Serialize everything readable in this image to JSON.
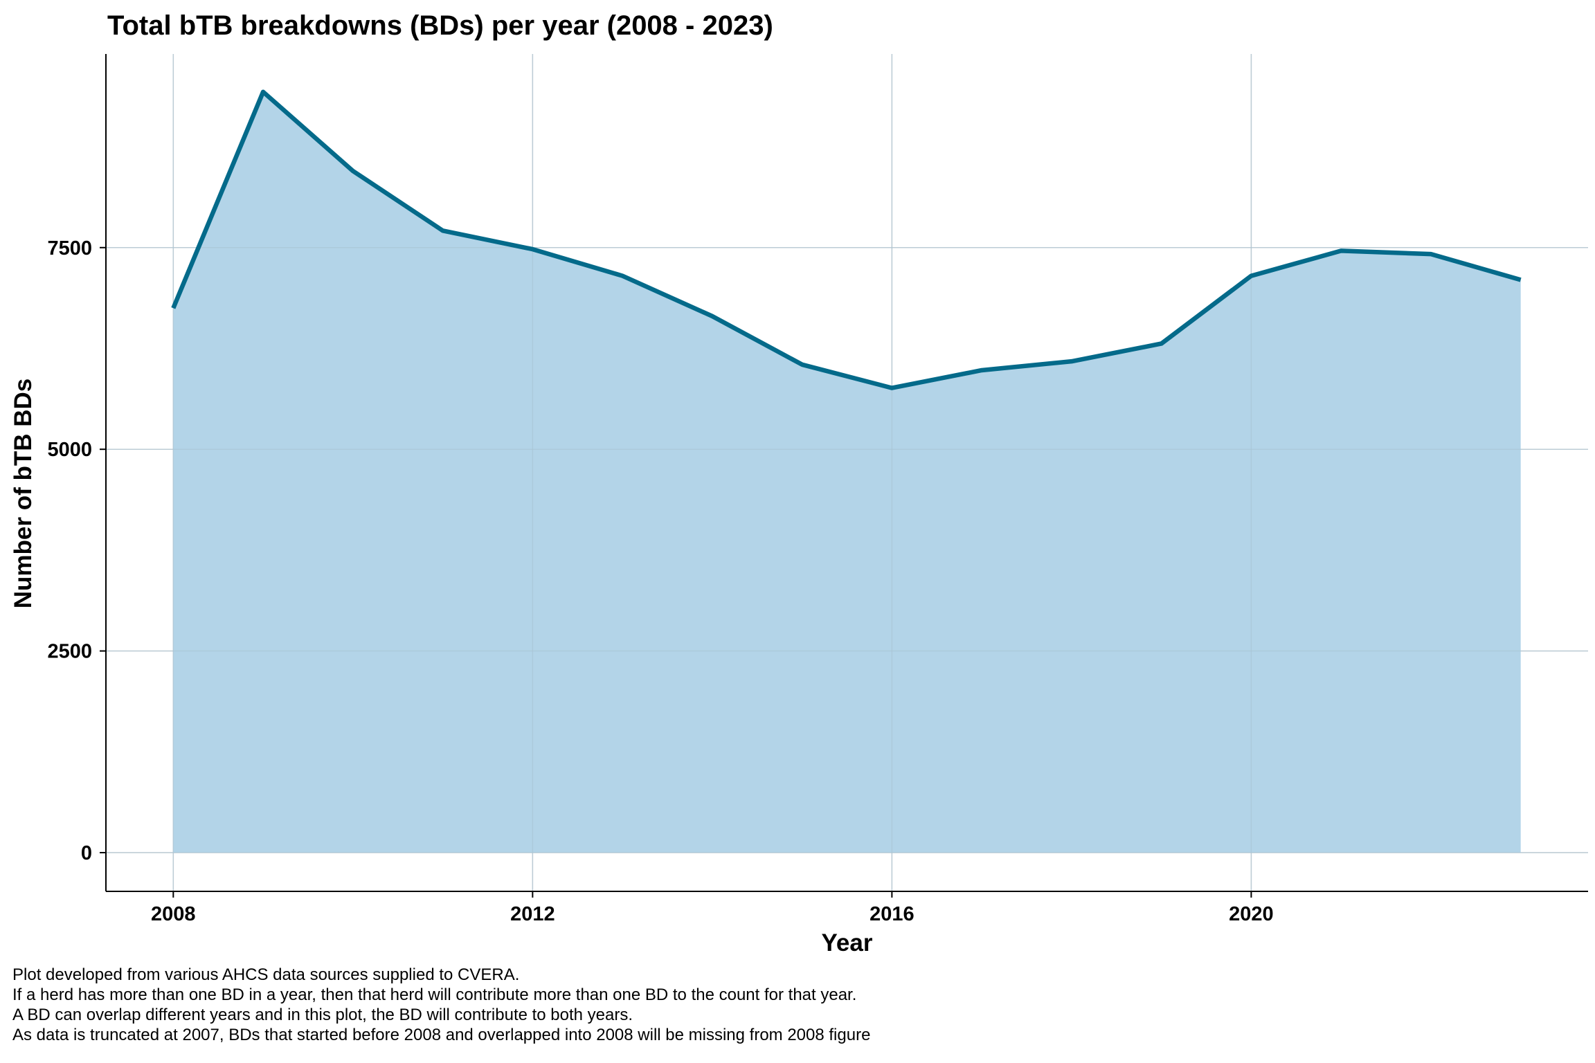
{
  "chart_data": {
    "type": "area",
    "title": "Total bTB breakdowns (BDs) per year (2008 - 2023)",
    "xlabel": "Year",
    "ylabel": "Number of bTB BDs",
    "x": [
      2008,
      2009,
      2010,
      2011,
      2012,
      2013,
      2014,
      2015,
      2016,
      2017,
      2018,
      2019,
      2020,
      2021,
      2022,
      2023
    ],
    "series": [
      {
        "values": [
          6750,
          9430,
          8450,
          7710,
          7480,
          7150,
          6650,
          6050,
          5760,
          5980,
          6090,
          6310,
          7150,
          7460,
          7420,
          7100
        ]
      }
    ],
    "xlim": [
      2007.25,
      2023.75
    ],
    "ylim": [
      -480,
      9900
    ],
    "x_ticks": [
      "2008",
      "2012",
      "2016",
      "2020"
    ],
    "y_ticks": [
      "0",
      "2500",
      "5000",
      "7500"
    ],
    "grid": true,
    "line_color": "#046A8A",
    "fill_color": "#B3D4E8",
    "grid_color": "#D9D9D9",
    "axis_color": "#000000"
  },
  "caption": [
    "Plot developed from various AHCS data sources supplied to CVERA.",
    "If a herd has more than one BD in a year, then that herd will contribute more than one BD to the count for that year.",
    "A BD can overlap different years and in this plot, the BD will contribute to both years.",
    "As data is truncated at 2007, BDs that started before 2008 and overlapped into 2008 will be missing from 2008 figure"
  ]
}
